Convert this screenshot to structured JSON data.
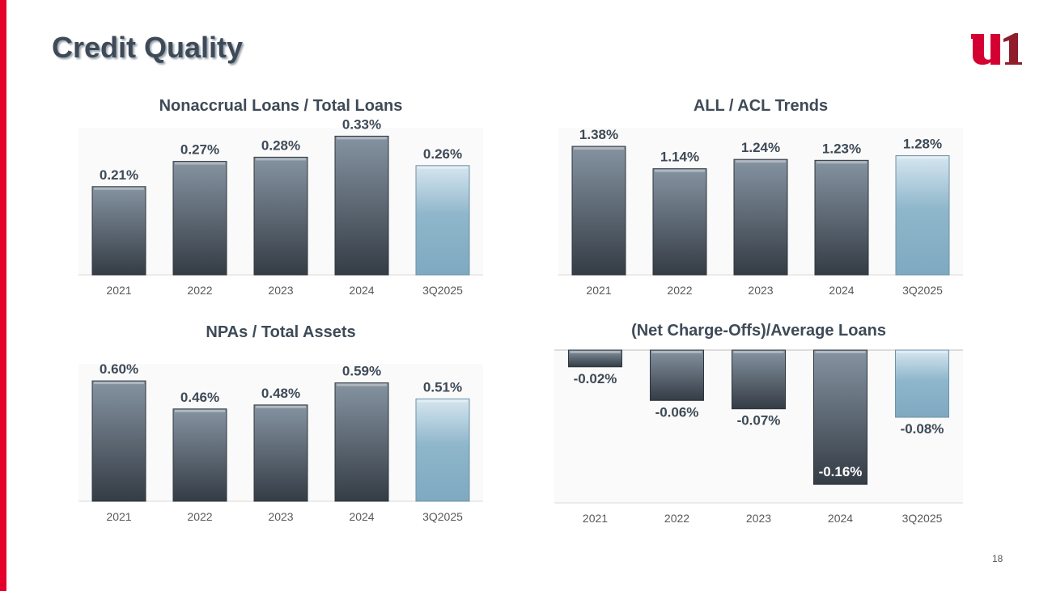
{
  "title": "Credit Quality",
  "page_number": "18",
  "logo_text": "u1",
  "colors": {
    "accent": "#e4002b",
    "bar_dark": "#3a434d",
    "bar_highlight": "#84adc4",
    "title": "#3e4a57"
  },
  "chart_data": [
    {
      "type": "bar",
      "title": "Nonaccrual Loans / Total Loans",
      "categories": [
        "2021",
        "2022",
        "2023",
        "2024",
        "3Q2025"
      ],
      "values": [
        0.21,
        0.27,
        0.28,
        0.33,
        0.26
      ],
      "labels": [
        "0.21%",
        "0.27%",
        "0.28%",
        "0.33%",
        "0.26%"
      ],
      "ylim": [
        0,
        0.35
      ]
    },
    {
      "type": "bar",
      "title": "ALL / ACL Trends",
      "categories": [
        "2021",
        "2022",
        "2023",
        "2024",
        "3Q2025"
      ],
      "values": [
        1.38,
        1.14,
        1.24,
        1.23,
        1.28
      ],
      "labels": [
        "1.38%",
        "1.14%",
        "1.24%",
        "1.23%",
        "1.28%"
      ],
      "ylim": [
        0,
        1.58
      ]
    },
    {
      "type": "bar",
      "title": "NPAs / Total Assets",
      "categories": [
        "2021",
        "2022",
        "2023",
        "2024",
        "3Q2025"
      ],
      "values": [
        0.6,
        0.46,
        0.48,
        0.59,
        0.51
      ],
      "labels": [
        "0.60%",
        "0.46%",
        "0.48%",
        "0.59%",
        "0.51%"
      ],
      "ylim": [
        0,
        0.685
      ]
    },
    {
      "type": "bar",
      "title": "(Net Charge-Offs)/Average Loans",
      "categories": [
        "2021",
        "2022",
        "2023",
        "2024",
        "3Q2025"
      ],
      "values": [
        -0.02,
        -0.06,
        -0.07,
        -0.16,
        -0.08
      ],
      "labels": [
        "-0.02%",
        "-0.06%",
        "-0.07%",
        "-0.16%",
        "-0.08%"
      ],
      "ylim": [
        -0.182,
        0
      ]
    }
  ]
}
